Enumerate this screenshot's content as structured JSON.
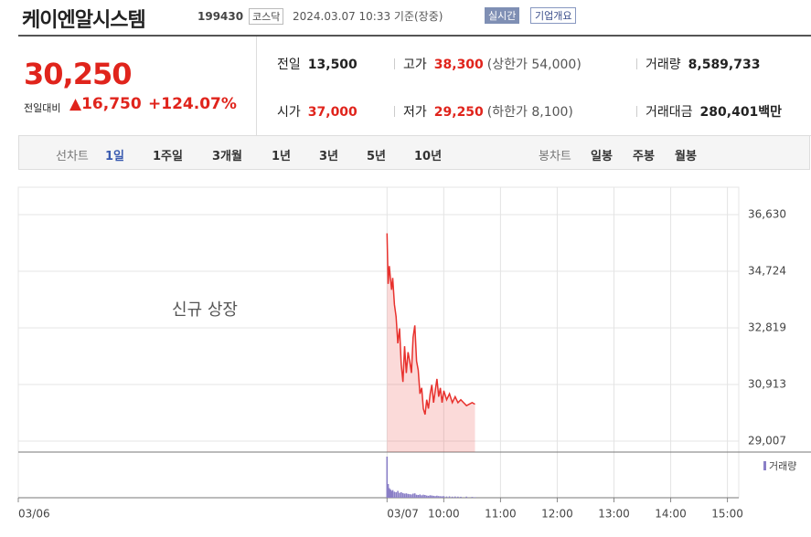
{
  "header": {
    "title": "케이엔알시스템",
    "code": "199430",
    "market": "코스닥",
    "datetime": "2024.03.07 10:33 기준(장중)",
    "realtime": "실시간",
    "company": "기업개요"
  },
  "price": {
    "current": "30,250",
    "change_label": "전일대비",
    "change": "16,750",
    "change_pct": "+124.07%"
  },
  "summary": [
    [
      {
        "label": "전일",
        "value": "13,500"
      },
      {
        "label": "고가",
        "value": "38,300",
        "note": "(상한가 54,000)"
      },
      {
        "label": "거래량",
        "value": "8,589,733"
      }
    ],
    [
      {
        "label": "시가",
        "value": "37,000"
      },
      {
        "label": "저가",
        "value": "29,250",
        "note": "(하한가 8,100)"
      },
      {
        "label": "거래대금",
        "value": "280,401백만"
      }
    ]
  ],
  "tabs": {
    "line_label": "선차트",
    "line": [
      "1일",
      "1주일",
      "3개월",
      "1년",
      "3년",
      "5년",
      "10년"
    ],
    "candle_label": "봉차트",
    "candle": [
      "일봉",
      "주봉",
      "월봉"
    ]
  },
  "chart_data": {
    "type": "line",
    "annotation": "신규 상장",
    "x": [
      9.0,
      9.02,
      9.04,
      9.06,
      9.08,
      9.1,
      9.13,
      9.16,
      9.19,
      9.22,
      9.25,
      9.28,
      9.31,
      9.34,
      9.37,
      9.4,
      9.43,
      9.46,
      9.49,
      9.52,
      9.55,
      9.58,
      9.61,
      9.64,
      9.67,
      9.7,
      9.73,
      9.76,
      9.79,
      9.82,
      9.85,
      9.88,
      9.91,
      9.94,
      9.97,
      10.0,
      10.05,
      10.1,
      10.15,
      10.2,
      10.25,
      10.3,
      10.4,
      10.5,
      10.55
    ],
    "series": [
      {
        "color": "#e8312d",
        "values": [
          36000,
          34300,
          34900,
          34500,
          34100,
          34500,
          33600,
          33200,
          32300,
          32800,
          31600,
          31000,
          32200,
          31300,
          32000,
          31700,
          31300,
          32500,
          32900,
          31700,
          31400,
          30600,
          30800,
          30100,
          29900,
          30400,
          30100,
          30600,
          30900,
          30300,
          30700,
          31100,
          30500,
          30800,
          30300,
          30700,
          30400,
          30600,
          30300,
          30500,
          30300,
          30400,
          30200,
          30300,
          30250
        ]
      }
    ],
    "volume": {
      "name": "거래량",
      "color": "#8a7fc7",
      "ylim": [
        0,
        1600000
      ],
      "values": [
        1500000,
        500000,
        350000,
        300000,
        250000,
        280000,
        220000,
        200000,
        250000,
        180000,
        200000,
        170000,
        150000,
        160000,
        140000,
        130000,
        120000,
        150000,
        160000,
        110000,
        100000,
        120000,
        90000,
        110000,
        100000,
        80000,
        70000,
        90000,
        80000,
        70000,
        60000,
        75000,
        60000,
        55000,
        50000,
        60000,
        45000,
        50000,
        40000,
        45000,
        40000,
        35000,
        40000,
        30000,
        20000
      ]
    },
    "xlim": [
      2.5,
      15.2
    ],
    "xticks": [
      {
        "value": 2.5,
        "label": "03/06"
      },
      {
        "value": 9,
        "label": "03/07"
      },
      {
        "value": 10,
        "label": "10:00"
      },
      {
        "value": 11,
        "label": "11:00"
      },
      {
        "value": 12,
        "label": "12:00"
      },
      {
        "value": 13,
        "label": "13:00"
      },
      {
        "value": 14,
        "label": "14:00"
      },
      {
        "value": 15,
        "label": "15:00"
      }
    ],
    "ylim": [
      28638,
      37552
    ],
    "yticks": [
      {
        "value": 29007,
        "label": "29,007"
      },
      {
        "value": 30913,
        "label": "30,913"
      },
      {
        "value": 32819,
        "label": "32,819"
      },
      {
        "value": 34724,
        "label": "34,724"
      },
      {
        "value": 36630,
        "label": "36,630"
      }
    ],
    "grid": true
  }
}
